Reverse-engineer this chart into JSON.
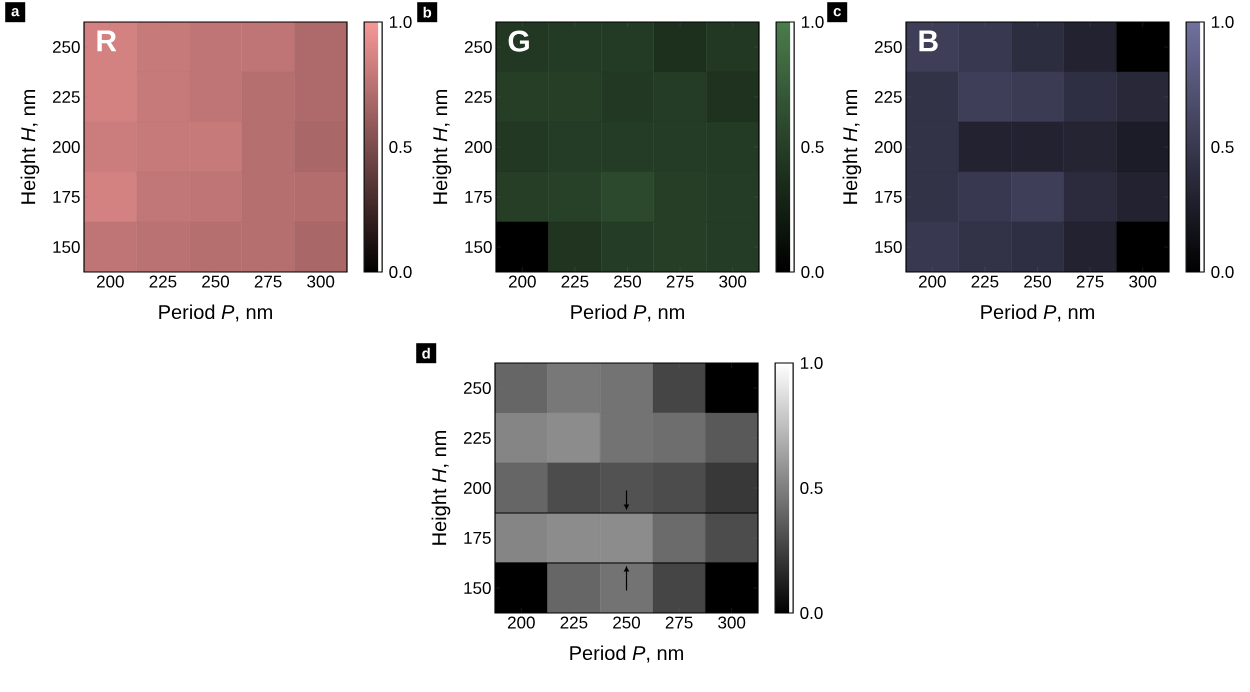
{
  "chart_data": [
    {
      "type": "heatmap",
      "xlabel": "Period *P*, nm",
      "ylabel": "Height *H*, nm",
      "annotations": [
        "a",
        "R"
      ],
      "colors": [
        "#000000",
        "#f89898"
      ],
      "categories": [
        "200",
        "225",
        "250",
        "275",
        "300"
      ],
      "y_categories": [
        "250",
        "225",
        "200",
        "175",
        "150"
      ],
      "cells": [
        [
          0.85,
          0.8,
          0.77,
          0.77,
          0.7
        ],
        [
          0.85,
          0.8,
          0.77,
          0.73,
          0.7
        ],
        [
          0.82,
          0.8,
          0.8,
          0.73,
          0.68
        ],
        [
          0.85,
          0.78,
          0.77,
          0.73,
          0.72
        ],
        [
          0.77,
          0.75,
          0.73,
          0.73,
          0.68
        ]
      ],
      "clim": [
        0,
        1
      ],
      "cticks": [
        {
          "value": 0,
          "label": "0.0"
        },
        {
          "value": 0.5,
          "label": "0.5"
        },
        {
          "value": 1,
          "label": "1.0"
        }
      ]
    },
    {
      "type": "heatmap",
      "xlabel": "Period *P*, nm",
      "ylabel": "Height *H*, nm",
      "annotations": [
        "b",
        "G"
      ],
      "colors": [
        "#000000",
        "#4b7d4d"
      ],
      "categories": [
        "200",
        "225",
        "250",
        "275",
        "300"
      ],
      "y_categories": [
        "250",
        "225",
        "200",
        "175",
        "150"
      ],
      "cells": [
        [
          0.45,
          0.47,
          0.47,
          0.38,
          0.45
        ],
        [
          0.5,
          0.5,
          0.45,
          0.48,
          0.4
        ],
        [
          0.45,
          0.48,
          0.48,
          0.48,
          0.47
        ],
        [
          0.5,
          0.52,
          0.58,
          0.5,
          0.48
        ],
        [
          0.0,
          0.42,
          0.48,
          0.5,
          0.48
        ]
      ],
      "clim": [
        0,
        1
      ],
      "cticks": [
        {
          "value": 0,
          "label": "0.0"
        },
        {
          "value": 0.5,
          "label": "0.5"
        },
        {
          "value": 1,
          "label": "1.0"
        }
      ]
    },
    {
      "type": "heatmap",
      "xlabel": "Period *P*, nm",
      "ylabel": "Height *H*, nm",
      "annotations": [
        "c",
        "B"
      ],
      "colors": [
        "#000000",
        "#7171a0"
      ],
      "categories": [
        "200",
        "225",
        "250",
        "275",
        "300"
      ],
      "y_categories": [
        "250",
        "225",
        "200",
        "175",
        "150"
      ],
      "cells": [
        [
          0.55,
          0.5,
          0.4,
          0.3,
          0.0
        ],
        [
          0.45,
          0.55,
          0.52,
          0.42,
          0.35
        ],
        [
          0.45,
          0.3,
          0.3,
          0.32,
          0.25
        ],
        [
          0.45,
          0.5,
          0.55,
          0.38,
          0.3
        ],
        [
          0.5,
          0.45,
          0.42,
          0.3,
          0.0
        ]
      ],
      "clim": [
        0,
        1
      ],
      "cticks": [
        {
          "value": 0,
          "label": "0.0"
        },
        {
          "value": 0.5,
          "label": "0.5"
        },
        {
          "value": 1,
          "label": "1.0"
        }
      ]
    },
    {
      "type": "heatmap",
      "xlabel": "Period *P*, nm",
      "ylabel": "Height *H*, nm",
      "annotations": [
        "d"
      ],
      "colors": [
        "#000000",
        "#ffffff"
      ],
      "categories": [
        "200",
        "225",
        "250",
        "275",
        "300"
      ],
      "y_categories": [
        "250",
        "225",
        "200",
        "175",
        "150"
      ],
      "cells": [
        [
          0.4,
          0.47,
          0.45,
          0.27,
          0.0
        ],
        [
          0.52,
          0.55,
          0.45,
          0.43,
          0.35
        ],
        [
          0.4,
          0.3,
          0.32,
          0.3,
          0.22
        ],
        [
          0.52,
          0.55,
          0.55,
          0.42,
          0.3
        ],
        [
          0.0,
          0.4,
          0.45,
          0.27,
          0.0
        ]
      ],
      "clim": [
        0,
        1
      ],
      "cticks": [
        {
          "value": 0,
          "label": "0.0"
        },
        {
          "value": 0.5,
          "label": "0.5"
        },
        {
          "value": 1,
          "label": "1.0"
        }
      ]
    }
  ]
}
